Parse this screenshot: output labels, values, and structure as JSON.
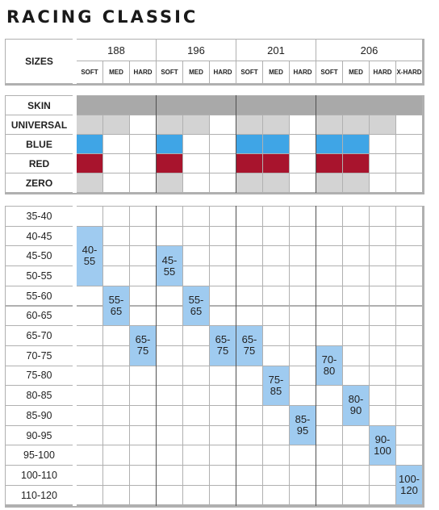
{
  "title": "RACING CLASSIC",
  "header": {
    "sizes_label": "SIZES",
    "ski_sizes": [
      {
        "size": "188",
        "flexes": [
          "SOFT",
          "MED",
          "HARD"
        ]
      },
      {
        "size": "196",
        "flexes": [
          "SOFT",
          "MED",
          "HARD"
        ]
      },
      {
        "size": "201",
        "flexes": [
          "SOFT",
          "MED",
          "HARD"
        ]
      },
      {
        "size": "206",
        "flexes": [
          "SOFT",
          "MED",
          "HARD",
          "X-HARD"
        ]
      }
    ]
  },
  "wax_rows": [
    {
      "label": "SKIN",
      "color": "#a9a9a9",
      "cells": [
        1,
        1,
        1,
        1,
        1,
        1,
        1,
        1,
        1,
        1,
        1,
        1,
        1
      ]
    },
    {
      "label": "UNIVERSAL",
      "color": "#d3d3d3",
      "cells": [
        1,
        1,
        0,
        1,
        1,
        0,
        1,
        1,
        0,
        1,
        1,
        1,
        0
      ]
    },
    {
      "label": "BLUE",
      "color": "#3fa5e6",
      "cells": [
        1,
        0,
        0,
        1,
        0,
        0,
        1,
        1,
        0,
        1,
        1,
        0,
        0
      ]
    },
    {
      "label": "RED",
      "color": "#a8142d",
      "cells": [
        1,
        0,
        0,
        1,
        0,
        0,
        1,
        1,
        0,
        1,
        1,
        0,
        0
      ]
    },
    {
      "label": "ZERO",
      "color": "#d3d3d3",
      "cells": [
        1,
        0,
        0,
        1,
        0,
        0,
        1,
        1,
        0,
        1,
        1,
        0,
        0
      ]
    }
  ],
  "weight_rows": [
    "35-40",
    "40-45",
    "45-50",
    "50-55",
    "55-60",
    "60-65",
    "65-70",
    "70-75",
    "75-80",
    "80-85",
    "85-90",
    "90-95",
    "95-100",
    "100-110",
    "110-120"
  ],
  "range_color": "#9fcbf0",
  "ranges": [
    {
      "text": "40-\n55",
      "col": 0,
      "row_start": 1,
      "row_end": 3
    },
    {
      "text": "55-\n65",
      "col": 1,
      "row_start": 4,
      "row_end": 5
    },
    {
      "text": "65-\n75",
      "col": 2,
      "row_start": 6,
      "row_end": 7
    },
    {
      "text": "45-\n55",
      "col": 3,
      "row_start": 2,
      "row_end": 3
    },
    {
      "text": "55-\n65",
      "col": 4,
      "row_start": 4,
      "row_end": 5
    },
    {
      "text": "65-75",
      "col": 5,
      "row_start": 6,
      "row_end": 7
    },
    {
      "text": "65-\n75",
      "col": 6,
      "row_start": 6,
      "row_end": 7
    },
    {
      "text": "75-\n85",
      "col": 7,
      "row_start": 8,
      "row_end": 9
    },
    {
      "text": "85-\n95",
      "col": 8,
      "row_start": 10,
      "row_end": 11
    },
    {
      "text": "70-\n80",
      "col": 9,
      "row_start": 7,
      "row_end": 8
    },
    {
      "text": "80-\n90",
      "col": 10,
      "row_start": 9,
      "row_end": 10
    },
    {
      "text": "90-\n100",
      "col": 11,
      "row_start": 11,
      "row_end": 12
    },
    {
      "text": "100-\n120",
      "col": 12,
      "row_start": 13,
      "row_end": 14
    }
  ]
}
